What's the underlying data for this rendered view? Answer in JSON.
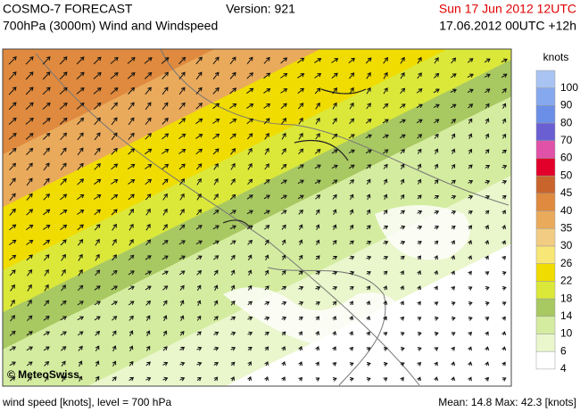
{
  "header": {
    "title": "COSMO-7 FORECAST",
    "subtitle": "700hPa (3000m) Wind and Windspeed",
    "version": "Version: 921",
    "valid": "Sun 17 Jun 2012 12UTC",
    "run": "17.06.2012 00UTC +12h"
  },
  "legend": {
    "unit": "knots",
    "levels": [
      {
        "label": "100",
        "color": "#a9c4f2"
      },
      {
        "label": "90",
        "color": "#86a8ee"
      },
      {
        "label": "80",
        "color": "#6b8fe6"
      },
      {
        "label": "70",
        "color": "#6a5fd2"
      },
      {
        "label": "60",
        "color": "#e052a8"
      },
      {
        "label": "50",
        "color": "#e2002a"
      },
      {
        "label": "45",
        "color": "#c9642c"
      },
      {
        "label": "40",
        "color": "#df8a3e"
      },
      {
        "label": "35",
        "color": "#eaaa5c"
      },
      {
        "label": "30",
        "color": "#f2cc82"
      },
      {
        "label": "26",
        "color": "#f8e676"
      },
      {
        "label": "22",
        "color": "#f0dc00"
      },
      {
        "label": "18",
        "color": "#dbe83a"
      },
      {
        "label": "14",
        "color": "#a8c862"
      },
      {
        "label": "10",
        "color": "#d4eca0"
      },
      {
        "label": "6",
        "color": "#eaf6cc"
      },
      {
        "label": "4",
        "color": "#ffffff"
      }
    ]
  },
  "credit": "© MeteoSwiss",
  "footer": {
    "left": "wind speed [knots], level = 700 hPa",
    "stats": "Mean:  14.8 Max:  42.3 [knots]"
  }
}
